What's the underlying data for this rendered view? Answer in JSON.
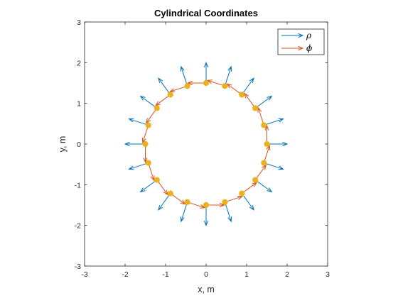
{
  "chart_data": {
    "type": "quiver",
    "title": "Cylindrical Coordinates",
    "xlabel": "x, m",
    "ylabel": "y, m",
    "xlim": [
      -3,
      3
    ],
    "ylim": [
      -3,
      3
    ],
    "xticks": [
      -3,
      -2,
      -1,
      0,
      1,
      2,
      3
    ],
    "yticks": [
      -3,
      -2,
      -1,
      0,
      1,
      2,
      3
    ],
    "grid": false,
    "legend_position": "top-right",
    "points": {
      "radius": 1.5,
      "count": 20,
      "start_angle_deg": 0,
      "color": "#EDB120"
    },
    "series": [
      {
        "name": "ρ",
        "arrow_length": 0.5,
        "color": "#0072BD",
        "direction": "radial"
      },
      {
        "name": "ϕ",
        "arrow_length": 0.45,
        "color": "#D95319",
        "direction": "tangential"
      }
    ]
  }
}
